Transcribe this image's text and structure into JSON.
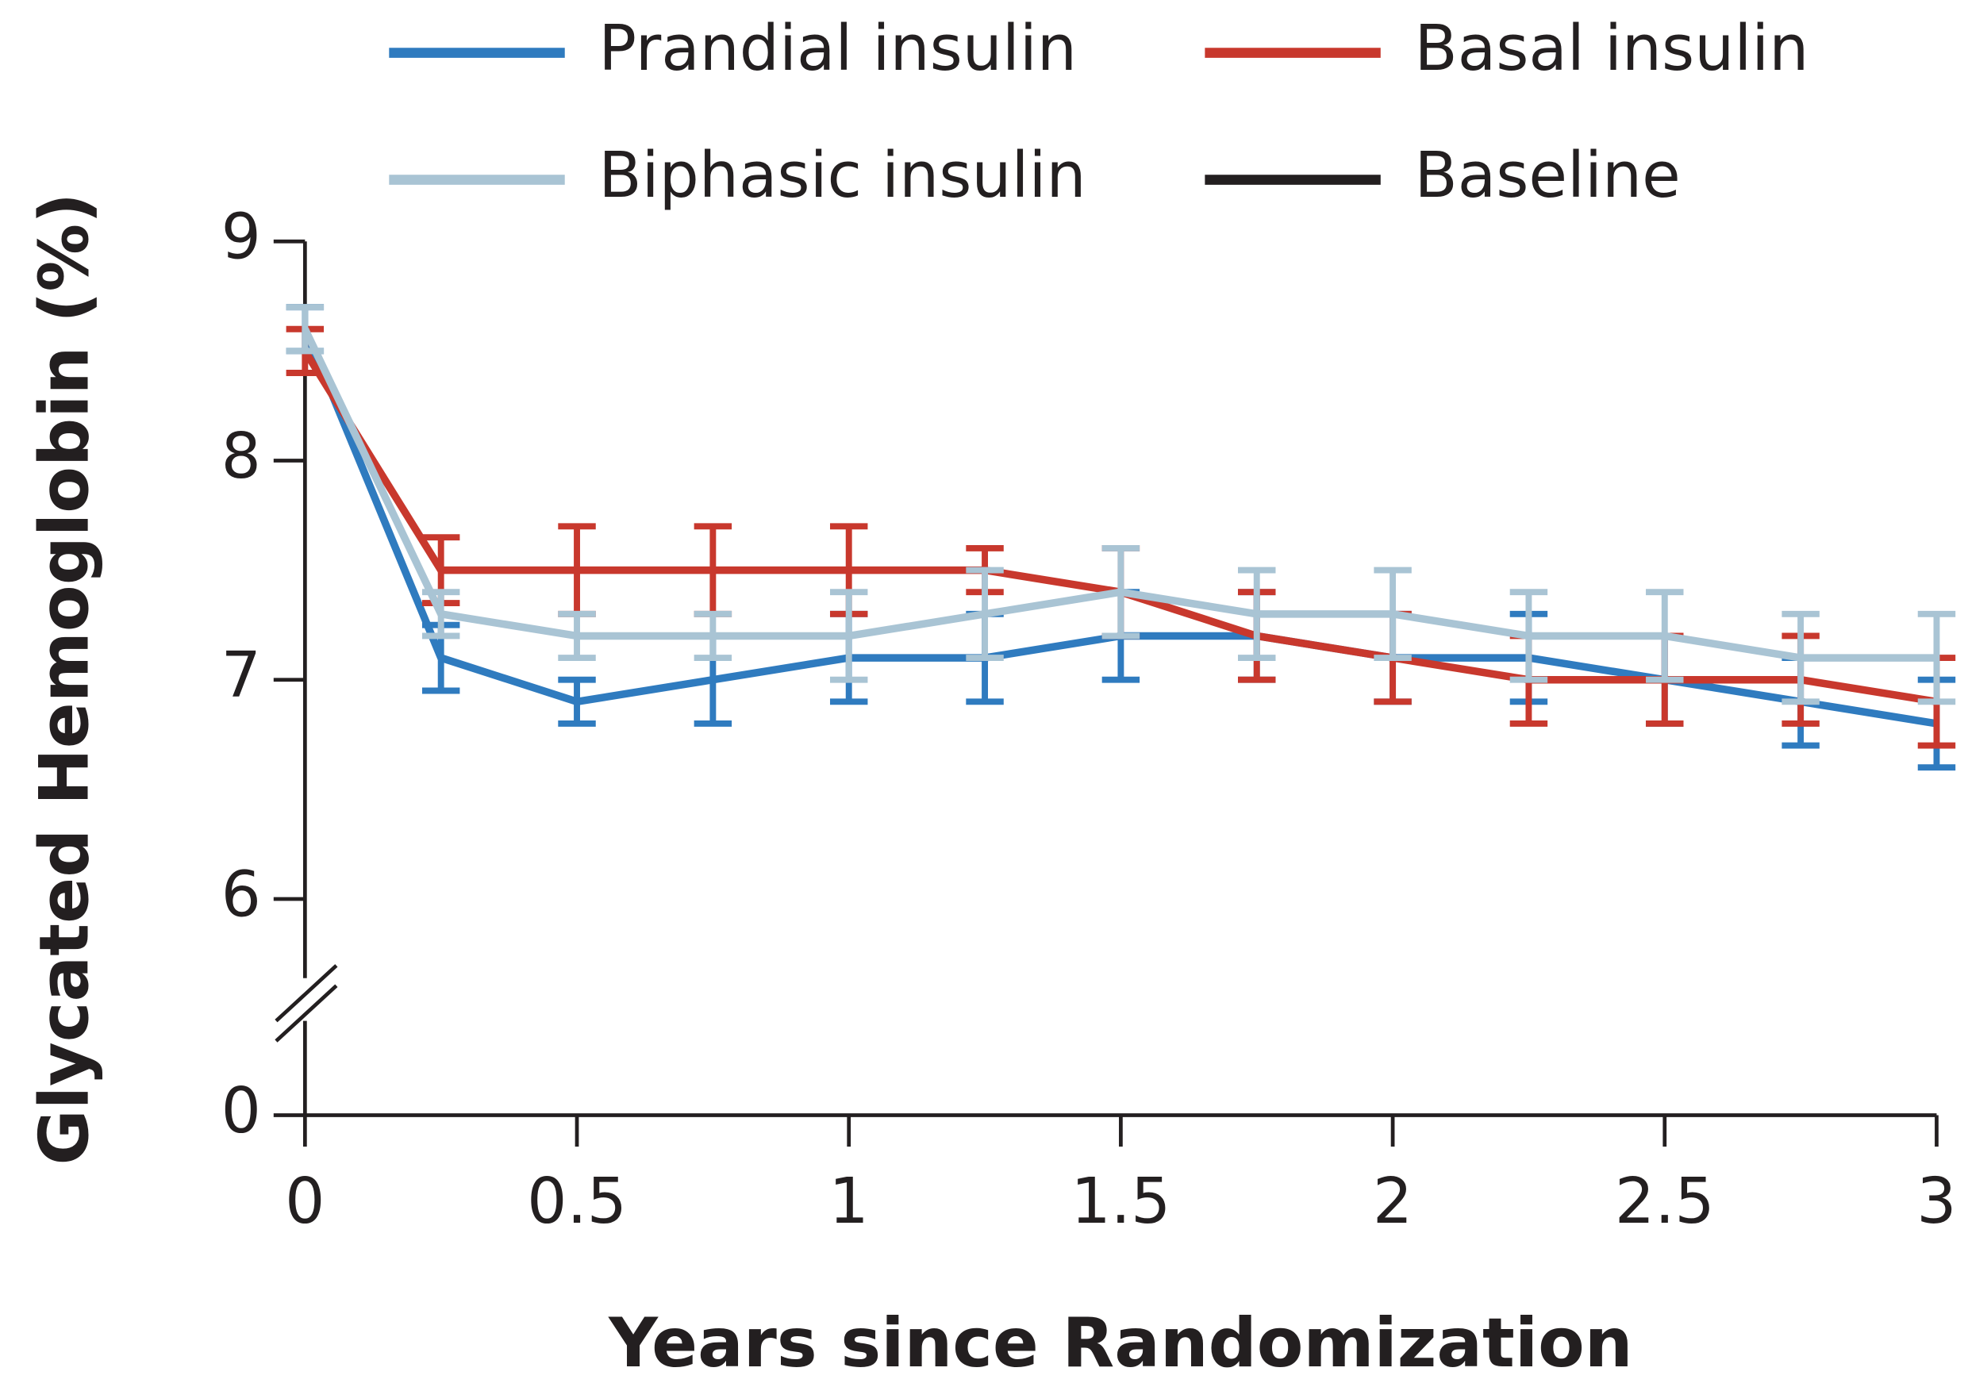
{
  "chart_data": {
    "type": "line",
    "x_label": "Years since Randomization",
    "y_label": "Glycated Hemoglobin (%)",
    "x": [
      0,
      0.25,
      0.5,
      0.75,
      1,
      1.25,
      1.5,
      1.75,
      2,
      2.25,
      2.5,
      2.75,
      3
    ],
    "series": [
      {
        "name": "Prandial insulin",
        "color": "#2f7bbf",
        "values": [
          8.6,
          7.1,
          6.9,
          7.0,
          7.1,
          7.1,
          7.2,
          7.2,
          7.1,
          7.1,
          7.0,
          6.9,
          6.8
        ],
        "errors": [
          0.1,
          0.15,
          0.1,
          0.2,
          0.2,
          0.2,
          0.2,
          0.2,
          0.2,
          0.2,
          0.2,
          0.2,
          0.2
        ]
      },
      {
        "name": "Basal insulin",
        "color": "#c8382d",
        "values": [
          8.5,
          7.5,
          7.5,
          7.5,
          7.5,
          7.5,
          7.4,
          7.2,
          7.1,
          7.0,
          7.0,
          7.0,
          6.9
        ],
        "errors": [
          0.1,
          0.15,
          0.2,
          0.2,
          0.2,
          0.1,
          0.2,
          0.2,
          0.2,
          0.2,
          0.2,
          0.2,
          0.2
        ]
      },
      {
        "name": "Biphasic insulin",
        "color": "#a9c4d4",
        "values": [
          8.6,
          7.3,
          7.2,
          7.2,
          7.2,
          7.3,
          7.4,
          7.3,
          7.3,
          7.2,
          7.2,
          7.1,
          7.1
        ],
        "errors": [
          0.1,
          0.1,
          0.1,
          0.1,
          0.2,
          0.2,
          0.2,
          0.2,
          0.2,
          0.2,
          0.2,
          0.2,
          0.2
        ]
      },
      {
        "name": "Baseline",
        "color": "#231f20",
        "values": [
          null,
          null,
          null,
          null,
          null,
          null,
          null,
          null,
          null,
          null,
          null,
          null,
          null
        ]
      }
    ],
    "xlim": [
      0,
      3
    ],
    "xticks": [
      0,
      0.5,
      1,
      1.5,
      2,
      2.5,
      3
    ],
    "ylim": [
      0,
      9
    ],
    "yticks": [
      0,
      6,
      7,
      8,
      9
    ],
    "y_break": [
      0,
      6
    ],
    "legend": "top"
  }
}
